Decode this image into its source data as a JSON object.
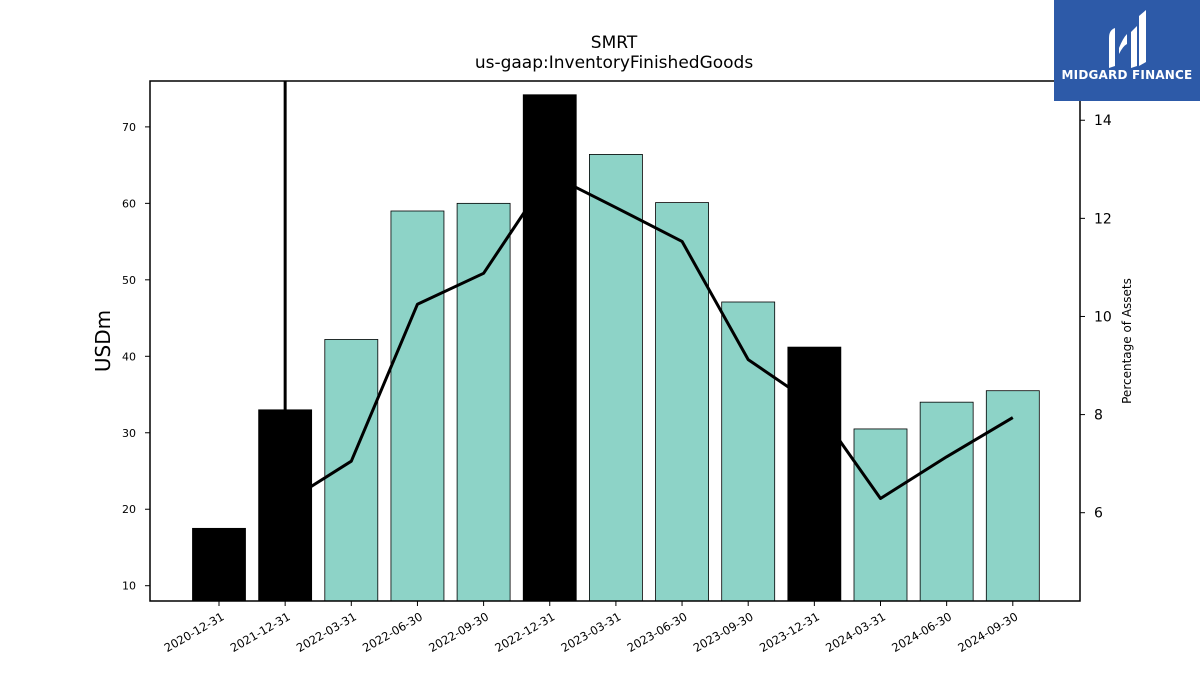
{
  "chart_data": {
    "type": "bar",
    "title": "SMRT",
    "subtitle": "us-gaap:InventoryFinishedGoods",
    "ylabel": "USDm",
    "y2label": "Percentage of Assets",
    "ylim": [
      8,
      76
    ],
    "y2lim": [
      4.2,
      14.8
    ],
    "yticks": [
      "10",
      "20",
      "30",
      "40",
      "50",
      "60",
      "70"
    ],
    "y2ticks": [
      "6",
      "8",
      "10",
      "12",
      "14"
    ],
    "categories": [
      "2020-12-31",
      "2021-12-31",
      "2022-03-31",
      "2022-06-30",
      "2022-09-30",
      "2022-12-31",
      "2023-03-31",
      "2023-06-30",
      "2023-09-30",
      "2023-12-31",
      "2024-03-31",
      "2024-06-30",
      "2024-09-30"
    ],
    "series": [
      {
        "type": "bar",
        "values": [
          17.5,
          33,
          42.2,
          59,
          60,
          74.2,
          66.4,
          60.1,
          47.1,
          41.2,
          30.5,
          34,
          35.5
        ],
        "annual_flags": [
          true,
          true,
          false,
          false,
          false,
          true,
          false,
          false,
          false,
          true,
          false,
          false,
          false
        ],
        "color_annual": "#000000",
        "color_quarter": "#8dd3c7"
      },
      {
        "type": "line",
        "axis": "right",
        "values": [
          null,
          6.2,
          7.05,
          10.25,
          10.88,
          12.9,
          12.22,
          11.53,
          9.12,
          8.2,
          6.29,
          7.14,
          7.94
        ],
        "color": "#000000"
      }
    ],
    "grid": false,
    "legend": "none"
  },
  "logo": {
    "text": "MIDGARD FINANCE",
    "background": "#2d5aa8"
  }
}
